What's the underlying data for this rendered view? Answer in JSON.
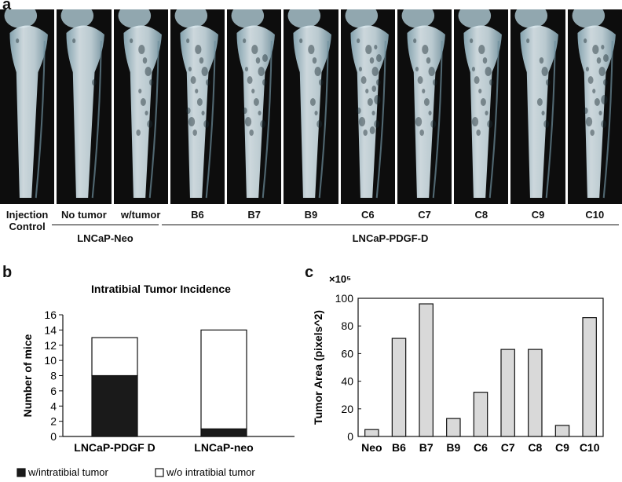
{
  "panel_a": {
    "letter": "a",
    "images": [
      {
        "label": "Injection\nControl",
        "lesion": 0.05
      },
      {
        "label": "No tumor",
        "lesion": 0.1
      },
      {
        "label": "w/tumor",
        "lesion": 0.45
      },
      {
        "label": "B6",
        "lesion": 0.65
      },
      {
        "label": "B7",
        "lesion": 0.7
      },
      {
        "label": "B9",
        "lesion": 0.35
      },
      {
        "label": "C6",
        "lesion": 0.85
      },
      {
        "label": "C7",
        "lesion": 0.6
      },
      {
        "label": "C8",
        "lesion": 0.6
      },
      {
        "label": "C9",
        "lesion": 0.3
      },
      {
        "label": "C10",
        "lesion": 0.75
      }
    ],
    "groups": [
      {
        "label": "LNCaP-Neo"
      },
      {
        "label": "LNCaP-PDGF-D"
      }
    ]
  },
  "panel_b": {
    "letter": "b"
  },
  "panel_c": {
    "letter": "c"
  },
  "chart_data": [
    {
      "type": "bar",
      "stacked": true,
      "title": "Intratibial Tumor Incidence",
      "xlabel": "",
      "ylabel": "Number of mice",
      "ylim": [
        0,
        16
      ],
      "yticks": [
        0,
        2,
        4,
        6,
        8,
        10,
        12,
        14,
        16
      ],
      "categories": [
        "LNCaP-PDGF D",
        "LNCaP-neo"
      ],
      "series": [
        {
          "name": "w/intratibial tumor",
          "values": [
            8,
            1
          ],
          "color": "#1a1a1a"
        },
        {
          "name": "w/o intratibial tumor",
          "values": [
            5,
            13
          ],
          "color": "#ffffff"
        }
      ],
      "legend": "bottom",
      "grid": false
    },
    {
      "type": "bar",
      "title": "",
      "xlabel": "",
      "ylabel": "Tumor Area (pixels^2)",
      "y_multiplier": "×10⁵",
      "ylim": [
        0,
        100
      ],
      "yticks": [
        0,
        20,
        40,
        60,
        80,
        100
      ],
      "categories": [
        "Neo",
        "B6",
        "B7",
        "B9",
        "C6",
        "C7",
        "C8",
        "C9",
        "C10"
      ],
      "values": [
        5,
        71,
        96,
        13,
        32,
        63,
        63,
        8,
        86
      ],
      "bar_color": "#d9d9d9",
      "grid": false
    }
  ]
}
